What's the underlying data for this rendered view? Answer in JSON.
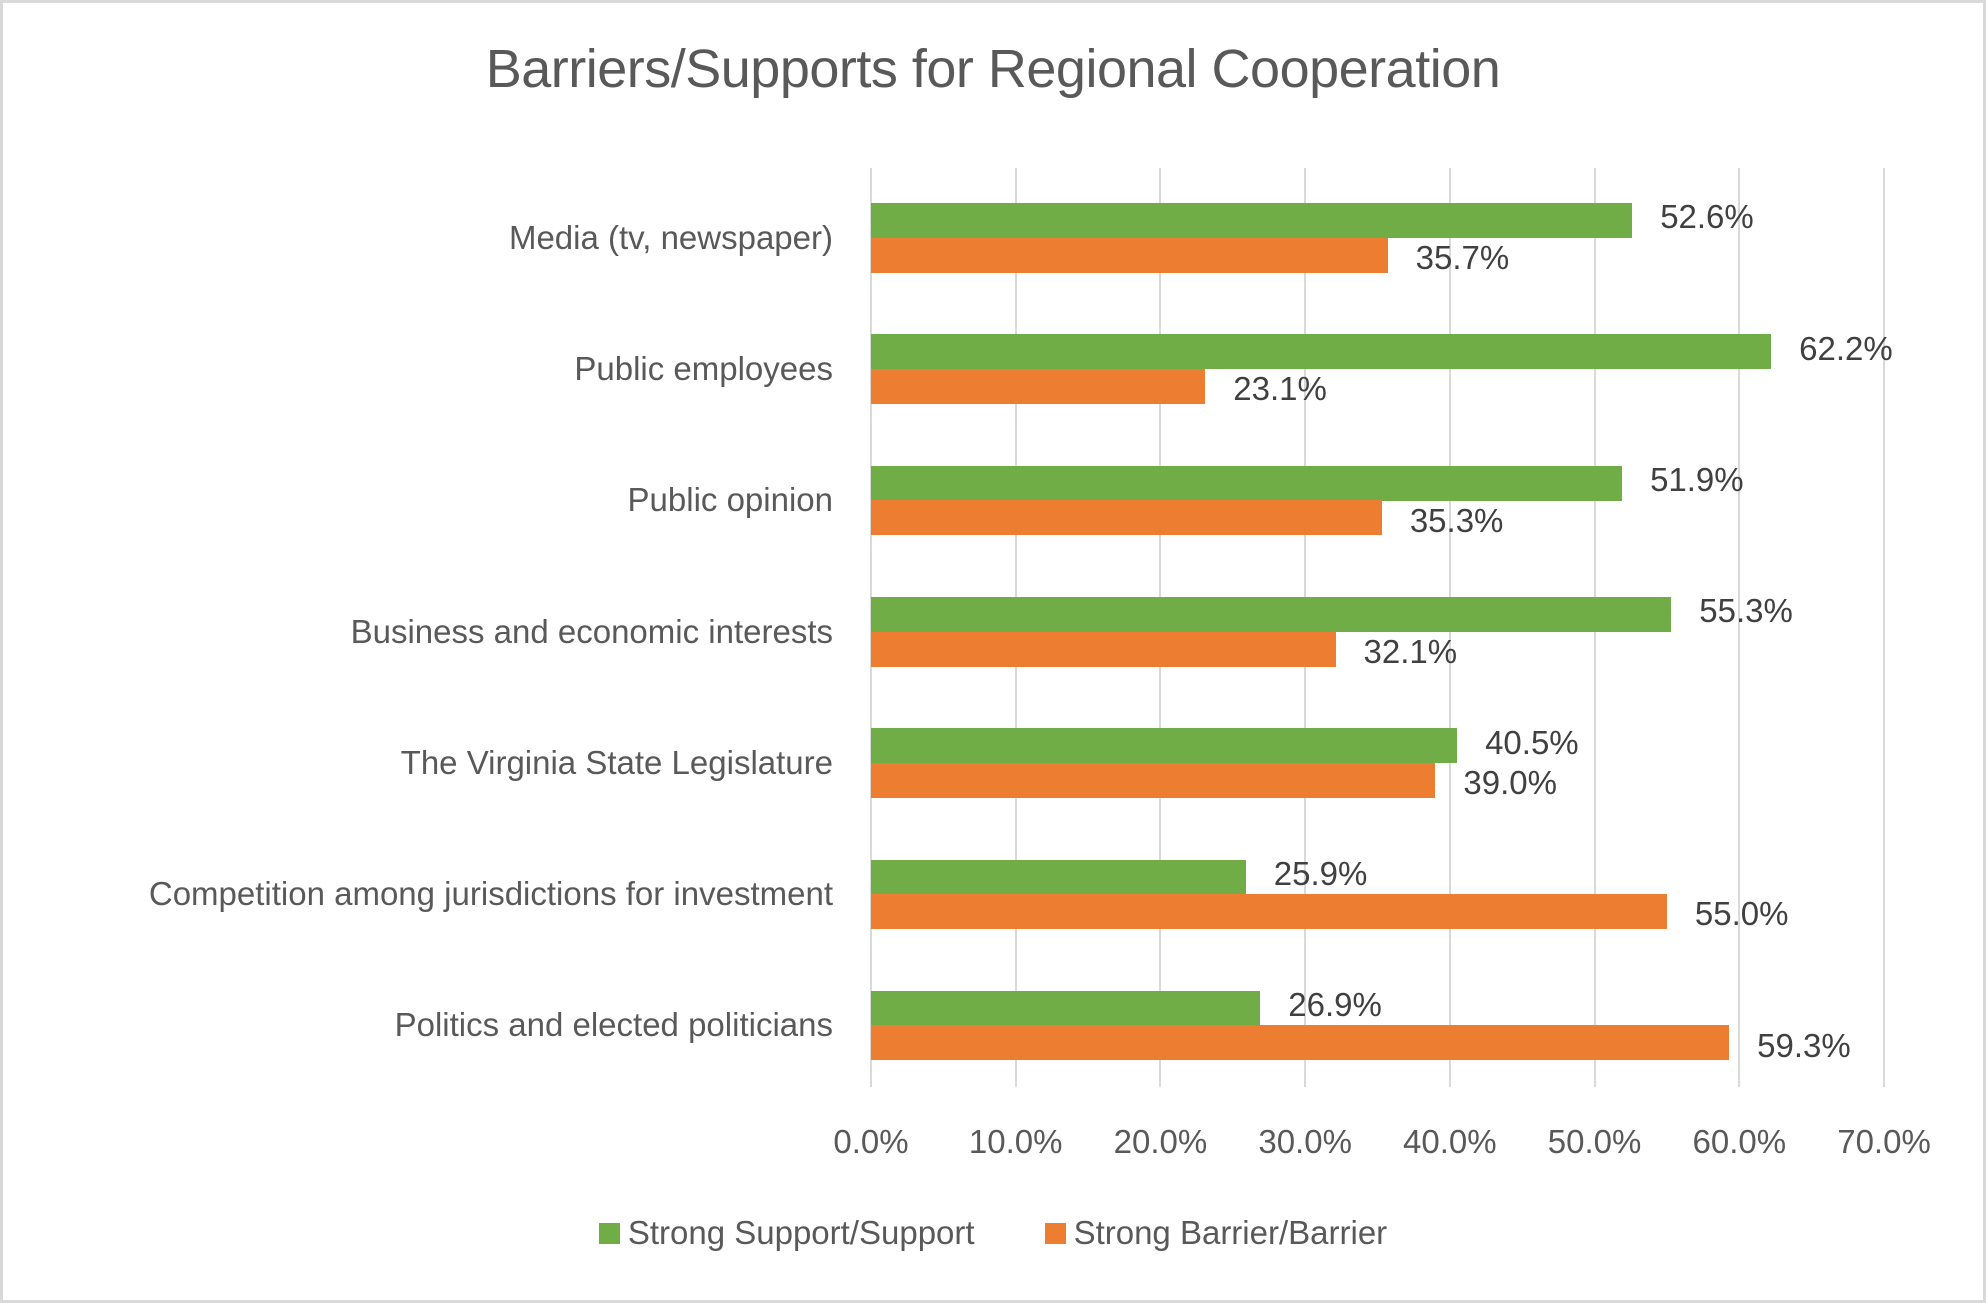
{
  "chart_data": {
    "type": "bar",
    "orientation": "horizontal",
    "title": "Barriers/Supports for Regional Cooperation",
    "xlabel": "",
    "ylabel": "",
    "xlim": [
      0,
      70
    ],
    "grid": true,
    "legend_position": "bottom",
    "categories": [
      "Media (tv, newspaper)",
      "Public employees",
      "Public opinion",
      "Business and economic interests",
      "The Virginia State Legislature",
      "Competition among jurisdictions for investment",
      "Politics and elected politicians"
    ],
    "series": [
      {
        "name": "Strong Support/Support",
        "color": "#70ad47",
        "values": [
          52.6,
          62.2,
          51.9,
          55.3,
          40.5,
          25.9,
          26.9
        ],
        "labels": [
          "52.6%",
          "62.2%",
          "51.9%",
          "55.3%",
          "40.5%",
          "25.9%",
          "26.9%"
        ]
      },
      {
        "name": "Strong Barrier/Barrier",
        "color": "#ed7d31",
        "values": [
          35.7,
          23.1,
          35.3,
          32.1,
          39.0,
          55.0,
          59.3
        ],
        "labels": [
          "35.7%",
          "23.1%",
          "35.3%",
          "32.1%",
          "39.0%",
          "55.0%",
          "59.3%"
        ]
      }
    ],
    "x_ticks": [
      "0.0%",
      "10.0%",
      "20.0%",
      "30.0%",
      "40.0%",
      "50.0%",
      "60.0%",
      "70.0%"
    ]
  }
}
